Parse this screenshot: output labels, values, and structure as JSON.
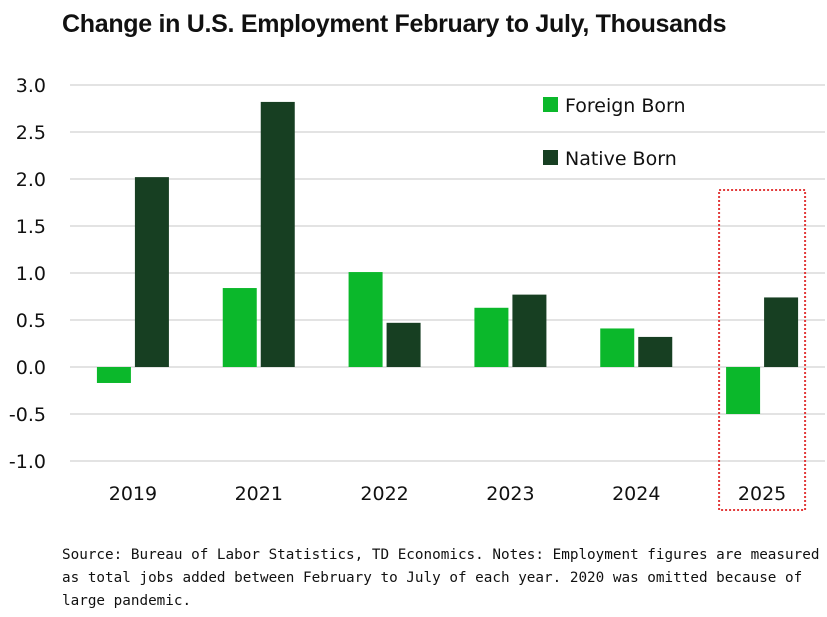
{
  "chart_data": {
    "type": "bar",
    "title": "Change in U.S. Employment February to July, Thousands",
    "categories": [
      "2019",
      "2021",
      "2022",
      "2023",
      "2024",
      "2025"
    ],
    "series": [
      {
        "name": "Foreign Born",
        "color": "#0bb82b",
        "values": [
          -0.17,
          0.84,
          1.01,
          0.63,
          0.41,
          -0.5
        ]
      },
      {
        "name": "Native Born",
        "color": "#173f22",
        "values": [
          2.02,
          2.82,
          0.47,
          0.77,
          0.32,
          0.74
        ]
      }
    ],
    "ylim": [
      -1.0,
      3.0
    ],
    "yticks": [
      "3.0",
      "2.5",
      "2.0",
      "1.5",
      "1.0",
      "0.5",
      "0.0",
      "-0.5",
      "-1.0"
    ],
    "ytick_values": [
      3.0,
      2.5,
      2.0,
      1.5,
      1.0,
      0.5,
      0.0,
      -0.5,
      -1.0
    ],
    "grid": true,
    "legend_position": "top-right",
    "highlight_category": "2025",
    "highlight_color": "#e23a3a",
    "xlabel": "",
    "ylabel": ""
  },
  "footnote": "Source: Bureau of Labor Statistics, TD Economics. Notes: Employment figures are measured as total jobs added between February to July of each year. 2020 was omitted because of large pandemic."
}
